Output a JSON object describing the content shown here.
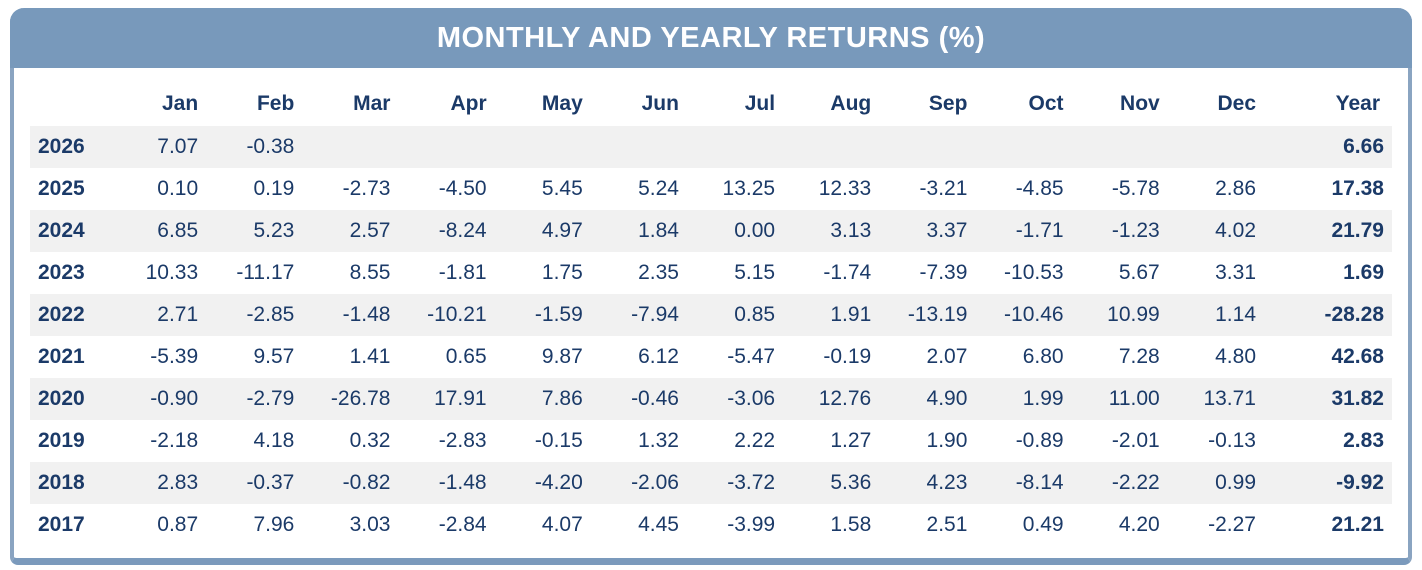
{
  "title": "MONTHLY AND YEARLY RETURNS (%)",
  "columns": [
    "Jan",
    "Feb",
    "Mar",
    "Apr",
    "May",
    "Jun",
    "Jul",
    "Aug",
    "Sep",
    "Oct",
    "Nov",
    "Dec",
    "Year"
  ],
  "rows": [
    {
      "year": "2026",
      "values": [
        "7.07",
        "-0.38",
        "",
        "",
        "",
        "",
        "",
        "",
        "",
        "",
        "",
        "",
        "6.66"
      ]
    },
    {
      "year": "2025",
      "values": [
        "0.10",
        "0.19",
        "-2.73",
        "-4.50",
        "5.45",
        "5.24",
        "13.25",
        "12.33",
        "-3.21",
        "-4.85",
        "-5.78",
        "2.86",
        "17.38"
      ]
    },
    {
      "year": "2024",
      "values": [
        "6.85",
        "5.23",
        "2.57",
        "-8.24",
        "4.97",
        "1.84",
        "0.00",
        "3.13",
        "3.37",
        "-1.71",
        "-1.23",
        "4.02",
        "21.79"
      ]
    },
    {
      "year": "2023",
      "values": [
        "10.33",
        "-11.17",
        "8.55",
        "-1.81",
        "1.75",
        "2.35",
        "5.15",
        "-1.74",
        "-7.39",
        "-10.53",
        "5.67",
        "3.31",
        "1.69"
      ]
    },
    {
      "year": "2022",
      "values": [
        "2.71",
        "-2.85",
        "-1.48",
        "-10.21",
        "-1.59",
        "-7.94",
        "0.85",
        "1.91",
        "-13.19",
        "-10.46",
        "10.99",
        "1.14",
        "-28.28"
      ]
    },
    {
      "year": "2021",
      "values": [
        "-5.39",
        "9.57",
        "1.41",
        "0.65",
        "9.87",
        "6.12",
        "-5.47",
        "-0.19",
        "2.07",
        "6.80",
        "7.28",
        "4.80",
        "42.68"
      ]
    },
    {
      "year": "2020",
      "values": [
        "-0.90",
        "-2.79",
        "-26.78",
        "17.91",
        "7.86",
        "-0.46",
        "-3.06",
        "12.76",
        "4.90",
        "1.99",
        "11.00",
        "13.71",
        "31.82"
      ]
    },
    {
      "year": "2019",
      "values": [
        "-2.18",
        "4.18",
        "0.32",
        "-2.83",
        "-0.15",
        "1.32",
        "2.22",
        "1.27",
        "1.90",
        "-0.89",
        "-2.01",
        "-0.13",
        "2.83"
      ]
    },
    {
      "year": "2018",
      "values": [
        "2.83",
        "-0.37",
        "-0.82",
        "-1.48",
        "-4.20",
        "-2.06",
        "-3.72",
        "5.36",
        "4.23",
        "-8.14",
        "-2.22",
        "0.99",
        "-9.92"
      ]
    },
    {
      "year": "2017",
      "values": [
        "0.87",
        "7.96",
        "3.03",
        "-2.84",
        "4.07",
        "4.45",
        "-3.99",
        "1.58",
        "2.51",
        "0.49",
        "4.20",
        "-2.27",
        "21.21"
      ]
    }
  ],
  "colors": {
    "header_bg": "#7899bb",
    "border_side": "#8aa4c1",
    "border_bottom": "#7b9abc",
    "text_navy": "#1b3a68",
    "stripe": "#f1f1f1",
    "title_text": "#ffffff"
  },
  "chart_data": {
    "type": "table",
    "title": "MONTHLY AND YEARLY RETURNS (%)",
    "columns": [
      "Jan",
      "Feb",
      "Mar",
      "Apr",
      "May",
      "Jun",
      "Jul",
      "Aug",
      "Sep",
      "Oct",
      "Nov",
      "Dec",
      "Year"
    ],
    "row_labels": [
      "2026",
      "2025",
      "2024",
      "2023",
      "2022",
      "2021",
      "2020",
      "2019",
      "2018",
      "2017"
    ],
    "values": [
      [
        7.07,
        -0.38,
        null,
        null,
        null,
        null,
        null,
        null,
        null,
        null,
        null,
        null,
        6.66
      ],
      [
        0.1,
        0.19,
        -2.73,
        -4.5,
        5.45,
        5.24,
        13.25,
        12.33,
        -3.21,
        -4.85,
        -5.78,
        2.86,
        17.38
      ],
      [
        6.85,
        5.23,
        2.57,
        -8.24,
        4.97,
        1.84,
        0.0,
        3.13,
        3.37,
        -1.71,
        -1.23,
        4.02,
        21.79
      ],
      [
        10.33,
        -11.17,
        8.55,
        -1.81,
        1.75,
        2.35,
        5.15,
        -1.74,
        -7.39,
        -10.53,
        5.67,
        3.31,
        1.69
      ],
      [
        2.71,
        -2.85,
        -1.48,
        -10.21,
        -1.59,
        -7.94,
        0.85,
        1.91,
        -13.19,
        -10.46,
        10.99,
        1.14,
        -28.28
      ],
      [
        -5.39,
        9.57,
        1.41,
        0.65,
        9.87,
        6.12,
        -5.47,
        -0.19,
        2.07,
        6.8,
        7.28,
        4.8,
        42.68
      ],
      [
        -0.9,
        -2.79,
        -26.78,
        17.91,
        7.86,
        -0.46,
        -3.06,
        12.76,
        4.9,
        1.99,
        11.0,
        13.71,
        31.82
      ],
      [
        -2.18,
        4.18,
        0.32,
        -2.83,
        -0.15,
        1.32,
        2.22,
        1.27,
        1.9,
        -0.89,
        -2.01,
        -0.13,
        2.83
      ],
      [
        2.83,
        -0.37,
        -0.82,
        -1.48,
        -4.2,
        -2.06,
        -3.72,
        5.36,
        4.23,
        -8.14,
        -2.22,
        0.99,
        -9.92
      ],
      [
        0.87,
        7.96,
        3.03,
        -2.84,
        4.07,
        4.45,
        -3.99,
        1.58,
        2.51,
        0.49,
        4.2,
        -2.27,
        21.21
      ]
    ]
  }
}
